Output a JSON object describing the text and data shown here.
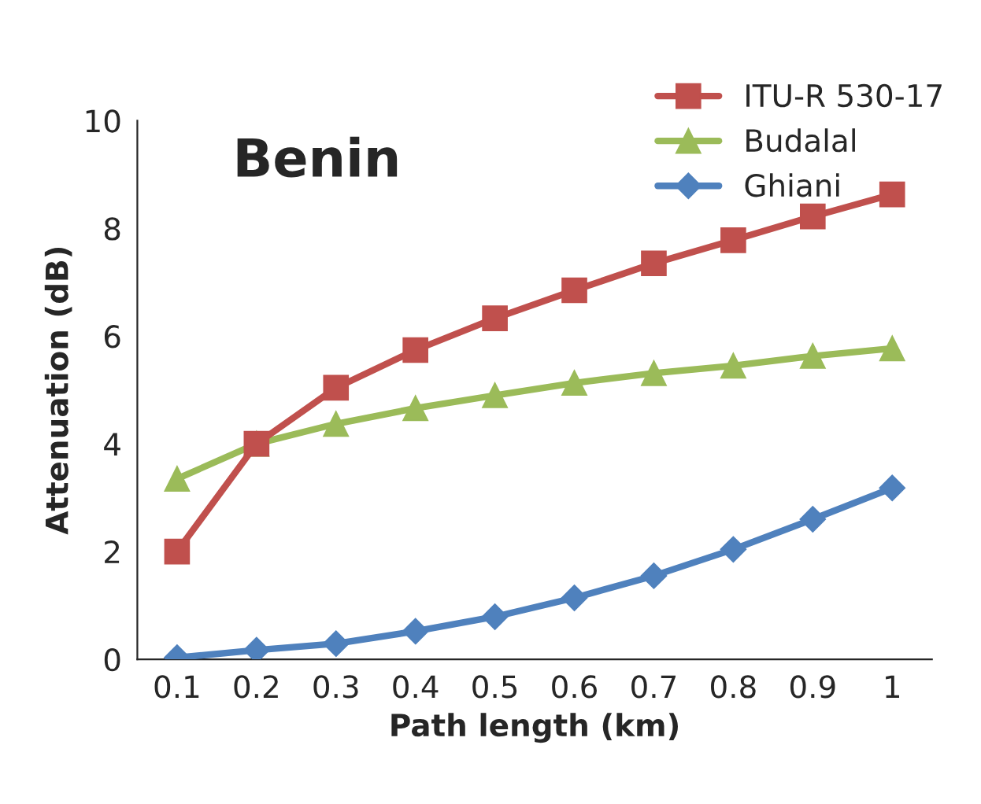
{
  "chart_data": {
    "type": "line",
    "title": "Benin",
    "xlabel": "Path length (km)",
    "ylabel": "Attenuation (dB)",
    "categories": [
      "0.1",
      "0.2",
      "0.3",
      "0.4",
      "0.5",
      "0.6",
      "0.7",
      "0.8",
      "0.9",
      "1"
    ],
    "series": [
      {
        "name": "ITU-R 530-17",
        "color": "#c0504d",
        "marker": "square",
        "values": [
          2.0,
          4.0,
          5.04,
          5.74,
          6.33,
          6.85,
          7.35,
          7.78,
          8.22,
          8.63
        ]
      },
      {
        "name": "Budalal",
        "color": "#9bbb59",
        "marker": "triangle",
        "values": [
          3.35,
          4.0,
          4.37,
          4.66,
          4.9,
          5.13,
          5.31,
          5.45,
          5.63,
          5.77
        ]
      },
      {
        "name": "Ghiani",
        "color": "#4f81bd",
        "marker": "diamond",
        "values": [
          0.03,
          0.17,
          0.29,
          0.52,
          0.79,
          1.14,
          1.55,
          2.04,
          2.6,
          3.18
        ]
      }
    ],
    "ylim": [
      0,
      10
    ],
    "yticks": [
      0,
      2,
      4,
      6,
      8,
      10
    ],
    "grid": false,
    "legend": "top right",
    "line_style": "solid"
  }
}
